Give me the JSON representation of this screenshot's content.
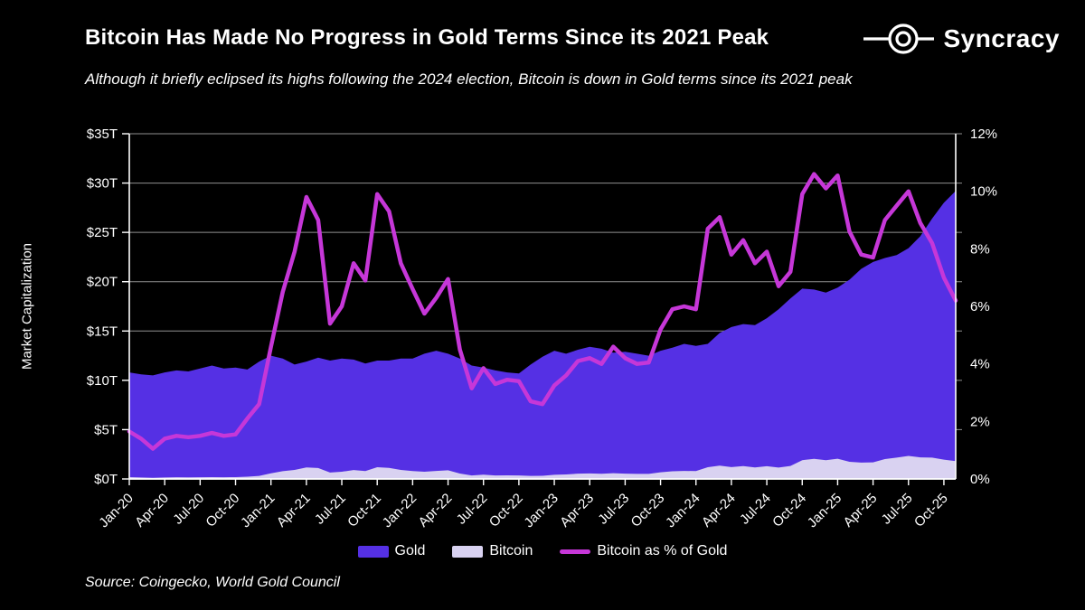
{
  "header": {
    "title": "Bitcoin Has Made No Progress in Gold Terms Since its 2021 Peak",
    "subtitle": "Although it briefly eclipsed its highs following the 2024 election, Bitcoin is down in Gold terms since its 2021 peak",
    "logo_text": "Syncracy"
  },
  "source": "Source: Coingecko, World Gold Council",
  "colors": {
    "background": "#000000",
    "gold_area": "#5530E4",
    "bitcoin_area": "#D9D2F1",
    "ratio_line": "#C637D8",
    "grid": "#8f8f8f",
    "axis": "#ffffff",
    "text": "#ffffff"
  },
  "chart_data": {
    "type": "area+line",
    "title": "Bitcoin Has Made No Progress in Gold Terms Since its 2021 Peak",
    "x_resolution": "monthly",
    "x_start": "Jan-20",
    "x_end": "Nov-25",
    "x_tick_labels": [
      "Jan-20",
      "Apr-20",
      "Jul-20",
      "Oct-20",
      "Jan-21",
      "Apr-21",
      "Jul-21",
      "Oct-21",
      "Jan-22",
      "Apr-22",
      "Jul-22",
      "Oct-22",
      "Jan-23",
      "Apr-23",
      "Jul-23",
      "Oct-23",
      "Jan-24",
      "Apr-24",
      "Jul-24",
      "Oct-24",
      "Jan-25",
      "Apr-25",
      "Jul-25",
      "Oct-25"
    ],
    "x_months": [
      "Jan-20",
      "Feb-20",
      "Mar-20",
      "Apr-20",
      "May-20",
      "Jun-20",
      "Jul-20",
      "Aug-20",
      "Sep-20",
      "Oct-20",
      "Nov-20",
      "Dec-20",
      "Jan-21",
      "Feb-21",
      "Mar-21",
      "Apr-21",
      "May-21",
      "Jun-21",
      "Jul-21",
      "Aug-21",
      "Sep-21",
      "Oct-21",
      "Nov-21",
      "Dec-21",
      "Jan-22",
      "Feb-22",
      "Mar-22",
      "Apr-22",
      "May-22",
      "Jun-22",
      "Jul-22",
      "Aug-22",
      "Sep-22",
      "Oct-22",
      "Nov-22",
      "Dec-22",
      "Jan-23",
      "Feb-23",
      "Mar-23",
      "Apr-23",
      "May-23",
      "Jun-23",
      "Jul-23",
      "Aug-23",
      "Sep-23",
      "Oct-23",
      "Nov-23",
      "Dec-23",
      "Jan-24",
      "Feb-24",
      "Mar-24",
      "Apr-24",
      "May-24",
      "Jun-24",
      "Jul-24",
      "Aug-24",
      "Sep-24",
      "Oct-24",
      "Nov-24",
      "Dec-24",
      "Jan-25",
      "Feb-25",
      "Mar-25",
      "Apr-25",
      "May-25",
      "Jun-25",
      "Jul-25",
      "Aug-25",
      "Sep-25",
      "Oct-25",
      "Nov-25"
    ],
    "left_axis": {
      "label": "Market Capitalization",
      "tick_labels": [
        "$0T",
        "$5T",
        "$10T",
        "$15T",
        "$20T",
        "$25T",
        "$30T",
        "$35T"
      ],
      "range": [
        0,
        35
      ]
    },
    "right_axis": {
      "tick_labels": [
        "0%",
        "2%",
        "4%",
        "6%",
        "8%",
        "10%",
        "12%"
      ],
      "range": [
        0,
        12
      ]
    },
    "series": [
      {
        "name": "Gold",
        "type": "area",
        "axis": "left",
        "unit": "trillion USD",
        "values": [
          10.8,
          10.6,
          10.5,
          10.8,
          11.0,
          10.9,
          11.2,
          11.5,
          11.2,
          11.3,
          11.1,
          11.9,
          12.5,
          12.2,
          11.6,
          11.9,
          12.3,
          12.0,
          12.2,
          12.1,
          11.7,
          12.0,
          12.0,
          12.2,
          12.2,
          12.7,
          13.0,
          12.7,
          12.2,
          11.5,
          11.3,
          11.0,
          10.8,
          10.7,
          11.6,
          12.4,
          13.0,
          12.7,
          13.1,
          13.4,
          13.2,
          12.8,
          12.9,
          12.7,
          12.5,
          13.0,
          13.3,
          13.7,
          13.5,
          13.7,
          14.8,
          15.4,
          15.7,
          15.6,
          16.3,
          17.2,
          18.3,
          19.3,
          19.2,
          18.9,
          19.4,
          20.2,
          21.3,
          22.0,
          22.4,
          22.7,
          23.4,
          24.6,
          26.4,
          28.0,
          29.2
        ]
      },
      {
        "name": "Bitcoin",
        "type": "area",
        "axis": "left",
        "unit": "trillion USD",
        "values": [
          0.18,
          0.15,
          0.11,
          0.15,
          0.17,
          0.16,
          0.17,
          0.18,
          0.17,
          0.18,
          0.23,
          0.31,
          0.58,
          0.79,
          0.92,
          1.17,
          1.11,
          0.65,
          0.73,
          0.91,
          0.81,
          1.19,
          1.12,
          0.92,
          0.81,
          0.73,
          0.82,
          0.88,
          0.55,
          0.36,
          0.44,
          0.36,
          0.37,
          0.36,
          0.31,
          0.32,
          0.42,
          0.46,
          0.54,
          0.56,
          0.53,
          0.59,
          0.54,
          0.51,
          0.51,
          0.68,
          0.78,
          0.82,
          0.8,
          1.19,
          1.35,
          1.2,
          1.3,
          1.17,
          1.29,
          1.15,
          1.32,
          1.91,
          2.04,
          1.91,
          2.05,
          1.74,
          1.66,
          1.69,
          2.02,
          2.16,
          2.34,
          2.19,
          2.16,
          1.96,
          1.81
        ]
      },
      {
        "name": "Bitcoin as % of Gold",
        "type": "line",
        "axis": "right",
        "unit": "percent",
        "values": [
          1.65,
          1.4,
          1.05,
          1.4,
          1.5,
          1.45,
          1.5,
          1.6,
          1.5,
          1.55,
          2.1,
          2.6,
          4.6,
          6.5,
          7.9,
          9.8,
          9.0,
          5.4,
          6.0,
          7.5,
          6.9,
          9.9,
          9.3,
          7.5,
          6.6,
          5.75,
          6.3,
          6.95,
          4.5,
          3.15,
          3.85,
          3.3,
          3.45,
          3.4,
          2.7,
          2.6,
          3.25,
          3.6,
          4.1,
          4.2,
          4.0,
          4.6,
          4.2,
          4.0,
          4.05,
          5.2,
          5.9,
          6.0,
          5.9,
          8.7,
          9.1,
          7.8,
          8.3,
          7.5,
          7.9,
          6.7,
          7.2,
          9.9,
          10.6,
          10.1,
          10.55,
          8.6,
          7.8,
          7.7,
          9.0,
          9.5,
          10.0,
          8.9,
          8.2,
          7.0,
          6.2
        ]
      }
    ],
    "legend": [
      {
        "label": "Gold",
        "swatch": "area",
        "color": "#5530E4"
      },
      {
        "label": "Bitcoin",
        "swatch": "area",
        "color": "#D9D2F1"
      },
      {
        "label": "Bitcoin as % of Gold",
        "swatch": "line",
        "color": "#C637D8"
      }
    ],
    "grid": true,
    "legend_position": "bottom-center"
  }
}
